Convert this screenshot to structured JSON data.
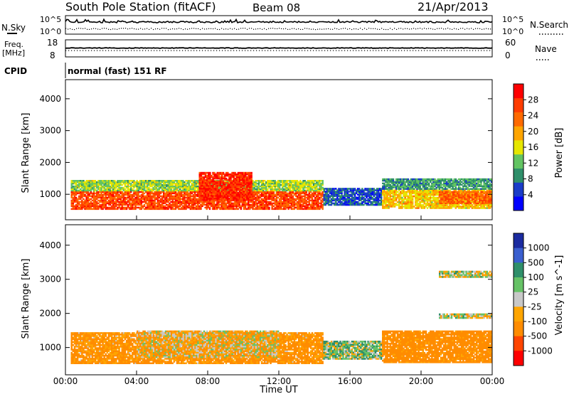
{
  "header": {
    "station_title": "South Pole Station (fitACF)",
    "beam": "Beam 08",
    "date": "21/Apr/2013"
  },
  "side_labels": {
    "nsky": "N.Sky",
    "nsearch": "N.Search",
    "freq_line1": "Freq.",
    "freq_line2": "[MHz]",
    "nave": "Nave",
    "cpid": "CPID",
    "cpid_value": "normal (fast) 151 RF"
  },
  "small_panels": {
    "noise_ticks_left": [
      "10^5",
      "10^0"
    ],
    "noise_ticks_right": [
      "10^5",
      "10^0"
    ],
    "freq_ticks": [
      "18",
      "8"
    ],
    "nave_ticks": [
      "60",
      "0"
    ]
  },
  "colors": {
    "power_scale": [
      "#0000ff",
      "#1a3cc8",
      "#2f8f6a",
      "#62c462",
      "#e6e600",
      "#ffa500",
      "#ff6a00",
      "#ff3c00",
      "#ff0000"
    ],
    "velocity_scale": [
      "#1b2ba0",
      "#3a5fcf",
      "#2f8f6a",
      "#66c266",
      "#c8c8c8",
      "#ffa500",
      "#ff8c00",
      "#ff4500",
      "#ff0000"
    ]
  },
  "chart_data": [
    {
      "type": "heatmap",
      "name": "Power",
      "ylabel": "Slant Range [km]",
      "yticks": [
        "1000",
        "2000",
        "3000",
        "4000"
      ],
      "ylim": [
        200,
        4600
      ],
      "xlim": [
        0,
        24
      ],
      "colorbar_label": "Power [dB]",
      "colorbar_ticks": [
        "4",
        "8",
        "12",
        "16",
        "20",
        "24",
        "28"
      ],
      "colorbar_range": [
        0,
        32
      ],
      "bands": [
        {
          "t0": 0.3,
          "t1": 14.5,
          "r0": 520,
          "r1": 1100,
          "value": 26
        },
        {
          "t0": 0.3,
          "t1": 14.5,
          "r0": 1100,
          "r1": 1450,
          "value": 14
        },
        {
          "t0": 7.5,
          "t1": 10.5,
          "r0": 800,
          "r1": 1700,
          "value": 28
        },
        {
          "t0": 14.5,
          "t1": 17.8,
          "r0": 650,
          "r1": 1200,
          "value": 6
        },
        {
          "t0": 17.8,
          "t1": 24,
          "r0": 550,
          "r1": 1150,
          "value": 18
        },
        {
          "t0": 17.8,
          "t1": 24,
          "r0": 1150,
          "r1": 1500,
          "value": 10
        },
        {
          "t0": 21,
          "t1": 24,
          "r0": 700,
          "r1": 1100,
          "value": 24
        }
      ]
    },
    {
      "type": "heatmap",
      "name": "Velocity",
      "ylabel": "Slant Range [km]",
      "yticks": [
        "1000",
        "2000",
        "3000",
        "4000"
      ],
      "ylim": [
        200,
        4600
      ],
      "xlim": [
        0,
        24
      ],
      "xlabel": "Time UT",
      "xticks": [
        "00:00",
        "04:00",
        "08:00",
        "12:00",
        "16:00",
        "20:00",
        "00:00"
      ],
      "colorbar_label": "Velocity [m s^-1]",
      "colorbar_ticks": [
        "1000",
        "500",
        "100",
        "25",
        "-25",
        "-100",
        "-500",
        "-1000"
      ],
      "bands": [
        {
          "t0": 0.3,
          "t1": 14.5,
          "r0": 520,
          "r1": 1450,
          "value": -150
        },
        {
          "t0": 4,
          "t1": 12,
          "r0": 700,
          "r1": 1500,
          "value": -60
        },
        {
          "t0": 14.5,
          "t1": 17.8,
          "r0": 650,
          "r1": 1200,
          "value": 50
        },
        {
          "t0": 17.8,
          "t1": 24,
          "r0": 550,
          "r1": 1500,
          "value": -200
        },
        {
          "t0": 21,
          "t1": 24,
          "r0": 1850,
          "r1": 2000,
          "value": 0
        },
        {
          "t0": 21,
          "t1": 24,
          "r0": 3050,
          "r1": 3250,
          "value": 0
        }
      ]
    }
  ]
}
